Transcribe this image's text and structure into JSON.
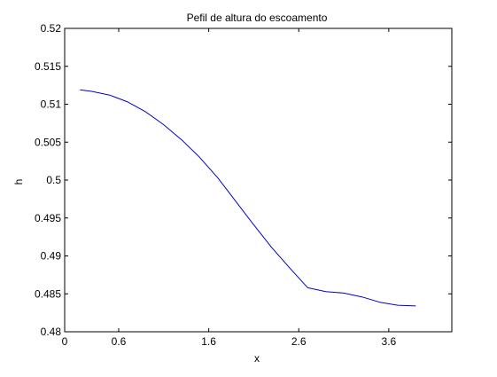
{
  "chart_data": {
    "type": "line",
    "title": "Pefil de altura do escoamento",
    "xlabel": "x",
    "ylabel": "h",
    "xlim": [
      0,
      4.3
    ],
    "ylim": [
      0.48,
      0.52
    ],
    "x_ticks": [
      0,
      0.6,
      1.6,
      2.6,
      3.6
    ],
    "x_tick_labels": [
      "0",
      "0.6",
      "1.6",
      "2.6",
      "3.6"
    ],
    "y_ticks": [
      0.48,
      0.485,
      0.49,
      0.495,
      0.5,
      0.505,
      0.51,
      0.515,
      0.52
    ],
    "y_tick_labels": [
      "0.48",
      "0.485",
      "0.49",
      "0.495",
      "0.5",
      "0.505",
      "0.51",
      "0.515",
      "0.52"
    ],
    "grid": false,
    "series": [
      {
        "color": "#0000cc",
        "x": [
          0.17,
          0.3,
          0.5,
          0.7,
          0.9,
          1.1,
          1.3,
          1.5,
          1.7,
          1.9,
          2.1,
          2.3,
          2.5,
          2.7,
          2.9,
          3.1,
          3.3,
          3.5,
          3.7,
          3.9
        ],
        "y": [
          0.5119,
          0.5117,
          0.5112,
          0.5103,
          0.509,
          0.5073,
          0.5053,
          0.503,
          0.5003,
          0.4972,
          0.4941,
          0.4911,
          0.4884,
          0.4858,
          0.4853,
          0.4851,
          0.4846,
          0.4839,
          0.4835,
          0.4834
        ]
      }
    ]
  }
}
